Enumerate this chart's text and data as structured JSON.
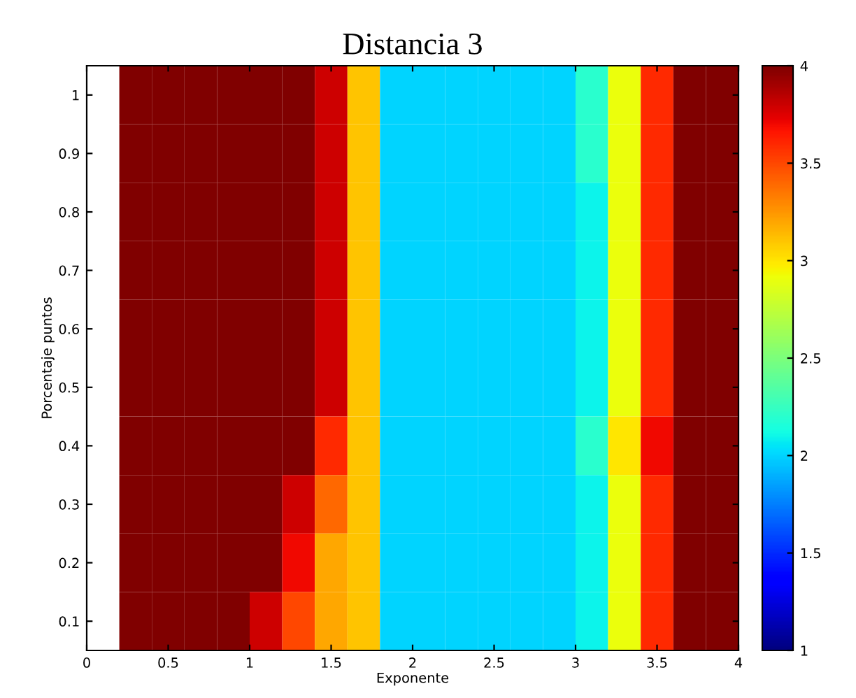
{
  "chart_data": {
    "type": "heatmap",
    "title": "Distancia 3",
    "xlabel": "Exponente",
    "ylabel": "Porcentaje puntos",
    "x": [
      0.3,
      0.5,
      0.7,
      0.9,
      1.1,
      1.3,
      1.5,
      1.7,
      1.9,
      2.1,
      2.3,
      2.5,
      2.7,
      2.9,
      3.1,
      3.3,
      3.5,
      3.7,
      3.9
    ],
    "y_categories": [
      "1",
      "0.9",
      "0.8",
      "0.7",
      "0.6",
      "0.5",
      "0.4",
      "0.3",
      "0.2",
      "0.1"
    ],
    "cells": [
      [
        4,
        4,
        4,
        4,
        4,
        4,
        3.8,
        3.1,
        2,
        2,
        2,
        2,
        2,
        2,
        2.2,
        2.9,
        3.6,
        4,
        4
      ],
      [
        4,
        4,
        4,
        4,
        4,
        4,
        3.8,
        3.1,
        2,
        2,
        2,
        2,
        2,
        2,
        2.2,
        2.9,
        3.6,
        4,
        4
      ],
      [
        4,
        4,
        4,
        4,
        4,
        4,
        3.8,
        3.1,
        2,
        2,
        2,
        2,
        2,
        2,
        2.1,
        2.9,
        3.6,
        4,
        4
      ],
      [
        4,
        4,
        4,
        4,
        4,
        4,
        3.8,
        3.1,
        2,
        2,
        2,
        2,
        2,
        2,
        2.1,
        2.9,
        3.6,
        4,
        4
      ],
      [
        4,
        4,
        4,
        4,
        4,
        4,
        3.8,
        3.1,
        2,
        2,
        2,
        2,
        2,
        2,
        2.1,
        2.9,
        3.6,
        4,
        4
      ],
      [
        4,
        4,
        4,
        4,
        4,
        4,
        3.8,
        3.1,
        2,
        2,
        2,
        2,
        2,
        2,
        2.1,
        2.9,
        3.6,
        4,
        4
      ],
      [
        4,
        4,
        4,
        4,
        4,
        4,
        3.6,
        3.1,
        2,
        2,
        2,
        2,
        2,
        2,
        2.2,
        3.0,
        3.7,
        4,
        4
      ],
      [
        4,
        4,
        4,
        4,
        4,
        3.8,
        3.4,
        3.1,
        2,
        2,
        2,
        2,
        2,
        2,
        2.1,
        2.9,
        3.6,
        4,
        4
      ],
      [
        4,
        4,
        4,
        4,
        4,
        3.7,
        3.2,
        3.1,
        2,
        2,
        2,
        2,
        2,
        2,
        2.1,
        2.9,
        3.6,
        4,
        4
      ],
      [
        4,
        4,
        4,
        4,
        3.8,
        3.5,
        3.2,
        3.1,
        2,
        2,
        2,
        2,
        2,
        2,
        2.1,
        2.9,
        3.6,
        4,
        4
      ]
    ],
    "xlim": [
      0,
      4
    ],
    "xticks": [
      0,
      {
        "value": 0.5,
        "label": "0.5"
      },
      1,
      {
        "value": 1.5,
        "label": "1.5"
      },
      2,
      {
        "value": 2.5,
        "label": "2.5"
      },
      3,
      {
        "value": 3.5,
        "label": "3.5"
      },
      4
    ],
    "clim": [
      1,
      4
    ],
    "cticks": [
      1,
      1.5,
      2,
      2.5,
      3,
      3.5,
      4
    ]
  }
}
